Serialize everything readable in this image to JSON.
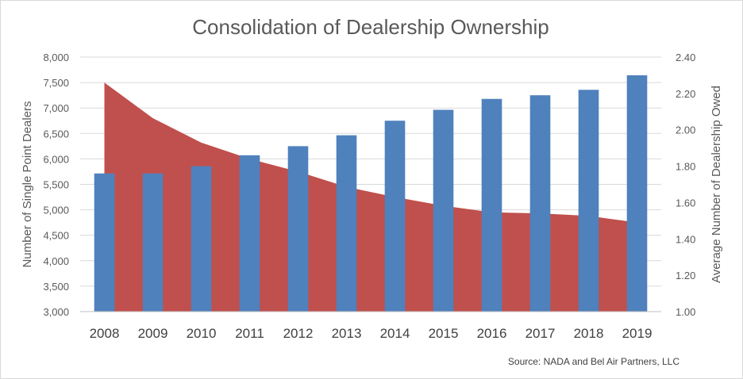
{
  "chart_data": {
    "type": "bar+area",
    "title": "Consolidation of Dealership Ownership",
    "source": "Source: NADA and Bel Air Partners, LLC",
    "categories": [
      "2008",
      "2009",
      "2010",
      "2011",
      "2012",
      "2013",
      "2014",
      "2015",
      "2016",
      "2017",
      "2018",
      "2019"
    ],
    "y_left": {
      "label": "Number of Single Point Dealers",
      "range": [
        3000,
        8000
      ],
      "ticks": [
        "3,000",
        "3,500",
        "4,000",
        "4,500",
        "5,000",
        "5,500",
        "6,000",
        "6,500",
        "7,000",
        "7,500",
        "8,000"
      ],
      "tick_values": [
        3000,
        3500,
        4000,
        4500,
        5000,
        5500,
        6000,
        6500,
        7000,
        7500,
        8000
      ]
    },
    "y_right": {
      "label": "Average Number of Dealership Owed",
      "range": [
        1.0,
        2.4
      ],
      "ticks": [
        "1.00",
        "1.20",
        "1.40",
        "1.60",
        "1.80",
        "2.00",
        "2.20",
        "2.40"
      ],
      "tick_values": [
        1.0,
        1.2,
        1.4,
        1.6,
        1.8,
        2.0,
        2.2,
        2.4
      ]
    },
    "series": [
      {
        "type": "bar",
        "axis": "right",
        "values": [
          1.76,
          1.76,
          1.8,
          1.86,
          1.91,
          1.97,
          2.05,
          2.11,
          2.17,
          2.19,
          2.22,
          2.3
        ]
      },
      {
        "type": "area",
        "axis": "left",
        "values": [
          7500,
          6800,
          6320,
          6000,
          5750,
          5450,
          5250,
          5080,
          4950,
          4930,
          4880,
          4750
        ]
      }
    ],
    "colors": {
      "bar": "#4f81bd",
      "area": "#c0504d",
      "grid": "#d9d9d9",
      "text": "#595959"
    },
    "grid": true,
    "legend": "none"
  }
}
